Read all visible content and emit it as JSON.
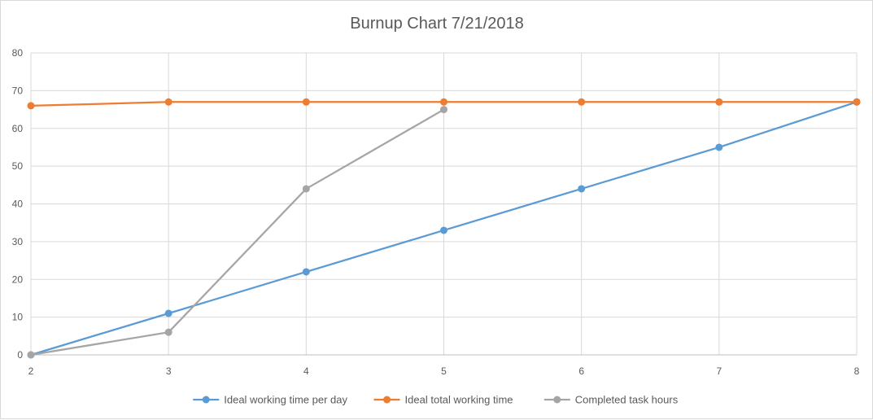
{
  "chart_data": {
    "type": "line",
    "title": "Burnup Chart 7/21/2018",
    "xlabel": "",
    "ylabel": "",
    "x": [
      2,
      3,
      4,
      5,
      6,
      7,
      8
    ],
    "xlim": [
      2,
      8
    ],
    "ylim": [
      0,
      80
    ],
    "yticks": [
      0,
      10,
      20,
      30,
      40,
      50,
      60,
      70,
      80
    ],
    "xticks": [
      2,
      3,
      4,
      5,
      6,
      7,
      8
    ],
    "grid": true,
    "legend_position": "bottom",
    "series": [
      {
        "name": "Ideal working time per day",
        "color": "#5b9bd5",
        "x": [
          2,
          3,
          4,
          5,
          6,
          7,
          8
        ],
        "values": [
          0,
          11,
          22,
          33,
          44,
          55,
          67
        ]
      },
      {
        "name": "Ideal total working time",
        "color": "#ed7d31",
        "x": [
          2,
          3,
          4,
          5,
          6,
          7,
          8
        ],
        "values": [
          66,
          67,
          67,
          67,
          67,
          67,
          67
        ]
      },
      {
        "name": "Completed task hours",
        "color": "#a5a5a5",
        "x": [
          2,
          3,
          4,
          5
        ],
        "values": [
          0,
          6,
          44,
          65
        ]
      }
    ]
  }
}
